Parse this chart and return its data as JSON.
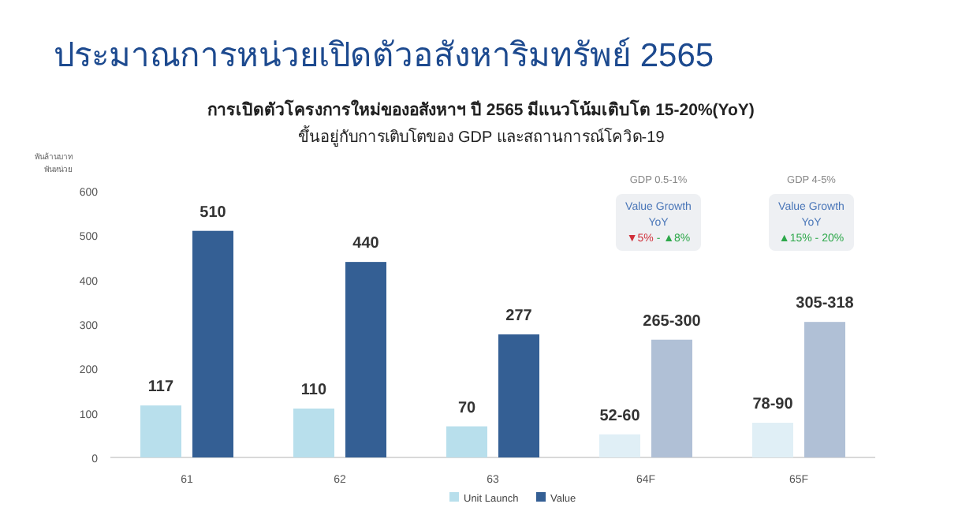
{
  "chart_data": {
    "type": "bar",
    "title": "ประมาณการหน่วยเปิดตัวอสังหาริมทรัพย์ 2565",
    "subtitle": "การเปิดตัวโครงการใหม่ของอสังหาฯ ปี 2565 มีแนวโน้มเติบโต 15-20%(YoY)\nขึ้นอยู่กับการเติบโตของ GDP และสถานการณ์โควิด-19",
    "ylabel": "พันล้านบาท\nพันหน่วย",
    "categories": [
      "61",
      "62",
      "63",
      "64F",
      "65F"
    ],
    "series": [
      {
        "name": "Unit Launch",
        "color": "#b8dfec",
        "colors": [
          "#b8dfec",
          "#b8dfec",
          "#b8dfec",
          "#e0eff6",
          "#e0eff6"
        ],
        "values": [
          117,
          110,
          70,
          52,
          78
        ],
        "value_labels": [
          "117",
          "110",
          "70",
          "52-60",
          "78-90"
        ]
      },
      {
        "name": "Value",
        "color": "#345f94",
        "colors": [
          "#345f94",
          "#345f94",
          "#345f94",
          "#b0c0d6",
          "#b0c0d6"
        ],
        "values": [
          510,
          440,
          277,
          265,
          305
        ],
        "value_labels": [
          "510",
          "440",
          "277",
          "265-300",
          "305-318"
        ]
      }
    ],
    "ylim": [
      0,
      600
    ],
    "yticks": [
      0,
      100,
      200,
      300,
      400,
      500,
      600
    ],
    "grid": false,
    "legend": "bottom",
    "annotations": [
      "GDP 0.5-1%",
      "Value Growth\nYoY\n▼5% - ▲8%",
      "GDP 4-5%",
      "Value Growth\nYoY\n▲15% - 20%"
    ]
  }
}
